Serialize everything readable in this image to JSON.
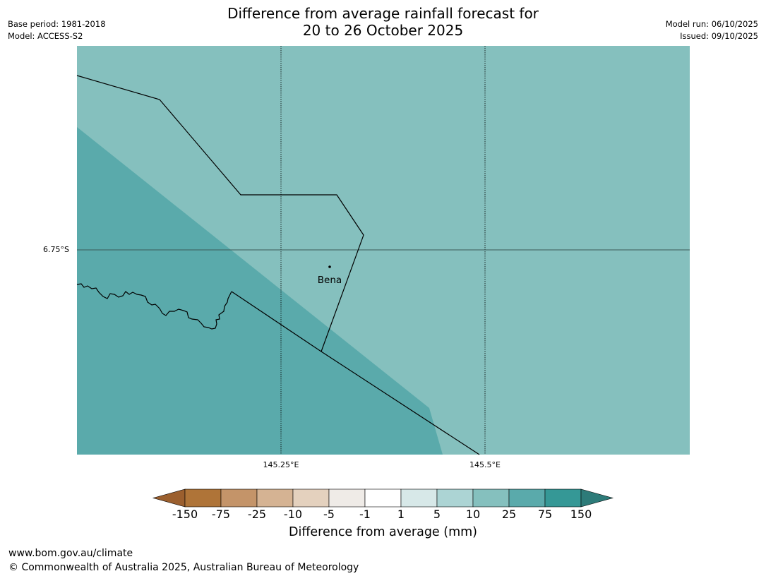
{
  "title": {
    "line1": "Difference from average rainfall forecast for",
    "line2": "20 to 26 October 2025"
  },
  "meta_left": {
    "base_period": "Base period: 1981-2018",
    "model": "Model: ACCESS-S2"
  },
  "meta_right": {
    "model_run": "Model run: 06/10/2025",
    "issued": "Issued: 09/10/2025"
  },
  "map": {
    "place_label": "Bena",
    "lat_label": "6.75°S",
    "lon_labels": [
      "145.25°E",
      "145.5°E"
    ],
    "colors": {
      "region_10_25": "#85c0be",
      "region_25_75": "#5aaaab",
      "border": "#000000",
      "gridline": "#000000"
    }
  },
  "colorbar": {
    "title": "Difference from average (mm)",
    "tick_labels": [
      "-150",
      "-75",
      "-25",
      "-10",
      "-5",
      "-1",
      "1",
      "5",
      "10",
      "25",
      "75",
      "150"
    ],
    "colors": [
      "#9b5f2e",
      "#af7438",
      "#c49469",
      "#d5b393",
      "#e4d1be",
      "#efebe7",
      "#ffffff",
      "#d7e8e8",
      "#acd4d4",
      "#85c0be",
      "#5aaaab",
      "#359896",
      "#2d7b79"
    ]
  },
  "footer": {
    "url": "www.bom.gov.au/climate",
    "copyright": "© Commonwealth of Australia 2025, Australian Bureau of Meteorology"
  }
}
